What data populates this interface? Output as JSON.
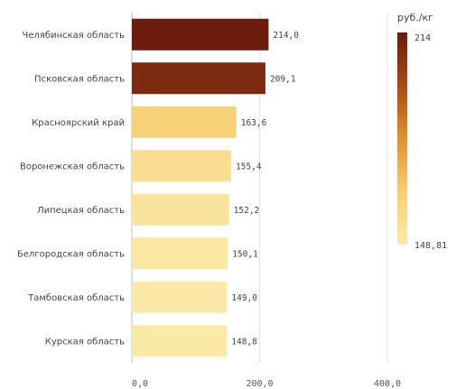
{
  "chart_data": {
    "type": "bar",
    "orientation": "horizontal",
    "categories": [
      "Челябинская область",
      "Псковская область",
      "Красноярский край",
      "Воронежская область",
      "Липецкая область",
      "Белгородская область",
      "Тамбовская область",
      "Курская область"
    ],
    "values": [
      214.0,
      209.1,
      163.6,
      155.4,
      152.2,
      150.1,
      149.0,
      148.8
    ],
    "value_labels": [
      "214,0",
      "209,1",
      "163,6",
      "155,4",
      "152,2",
      "150,1",
      "149,0",
      "148,8"
    ],
    "title": "",
    "xlabel": "",
    "ylabel": "",
    "xlim": [
      0,
      400
    ],
    "x_ticks": [
      0,
      200,
      400
    ],
    "x_tick_labels": [
      "0,0",
      "200,0",
      "400,0"
    ],
    "grid": true,
    "colorbar": {
      "title": "руб./кг",
      "max_label": "214",
      "min_label": "148,81",
      "min": 148.81,
      "max": 214,
      "color_low": "#fbe9a8",
      "color_high": "#6b1c0e",
      "placement": "right"
    }
  }
}
